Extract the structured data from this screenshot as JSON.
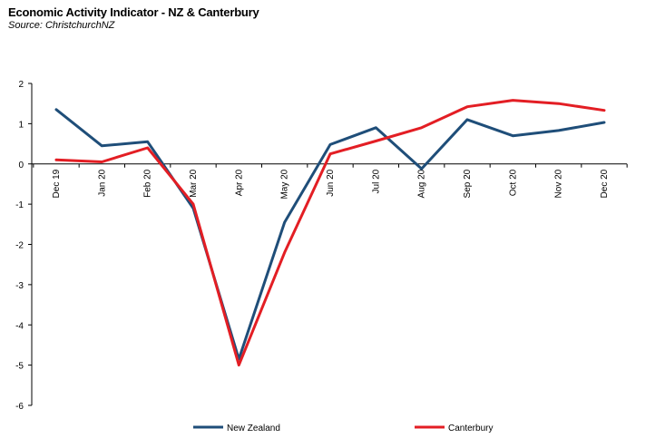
{
  "chart_data": {
    "type": "line",
    "title": "Economic Activity Indicator - NZ & Canterbury",
    "subtitle": "Source: ChristchurchNZ",
    "xlabel": "",
    "ylabel": "",
    "categories": [
      "Dec 19",
      "Jan 20",
      "Feb 20",
      "Mar 20",
      "Apr 20",
      "May 20",
      "Jun 20",
      "Jul 20",
      "Aug 20",
      "Sep 20",
      "Oct 20",
      "Nov 20",
      "Dec 20"
    ],
    "ylim": [
      -6,
      2
    ],
    "yticks": [
      2,
      1,
      0,
      -1,
      -2,
      -3,
      -4,
      -5,
      -6
    ],
    "grid": false,
    "legend_position": "bottom",
    "series": [
      {
        "name": "New Zealand",
        "color": "#1f4e79",
        "values": [
          1.35,
          0.45,
          0.55,
          -1.1,
          -4.85,
          -1.45,
          0.48,
          0.9,
          -0.12,
          1.1,
          0.7,
          0.83,
          1.03
        ]
      },
      {
        "name": "Canterbury",
        "color": "#e31e24",
        "values": [
          0.1,
          0.05,
          0.4,
          -1.0,
          -5.0,
          -2.2,
          0.25,
          0.57,
          0.9,
          1.42,
          1.58,
          1.5,
          1.33
        ]
      }
    ]
  }
}
